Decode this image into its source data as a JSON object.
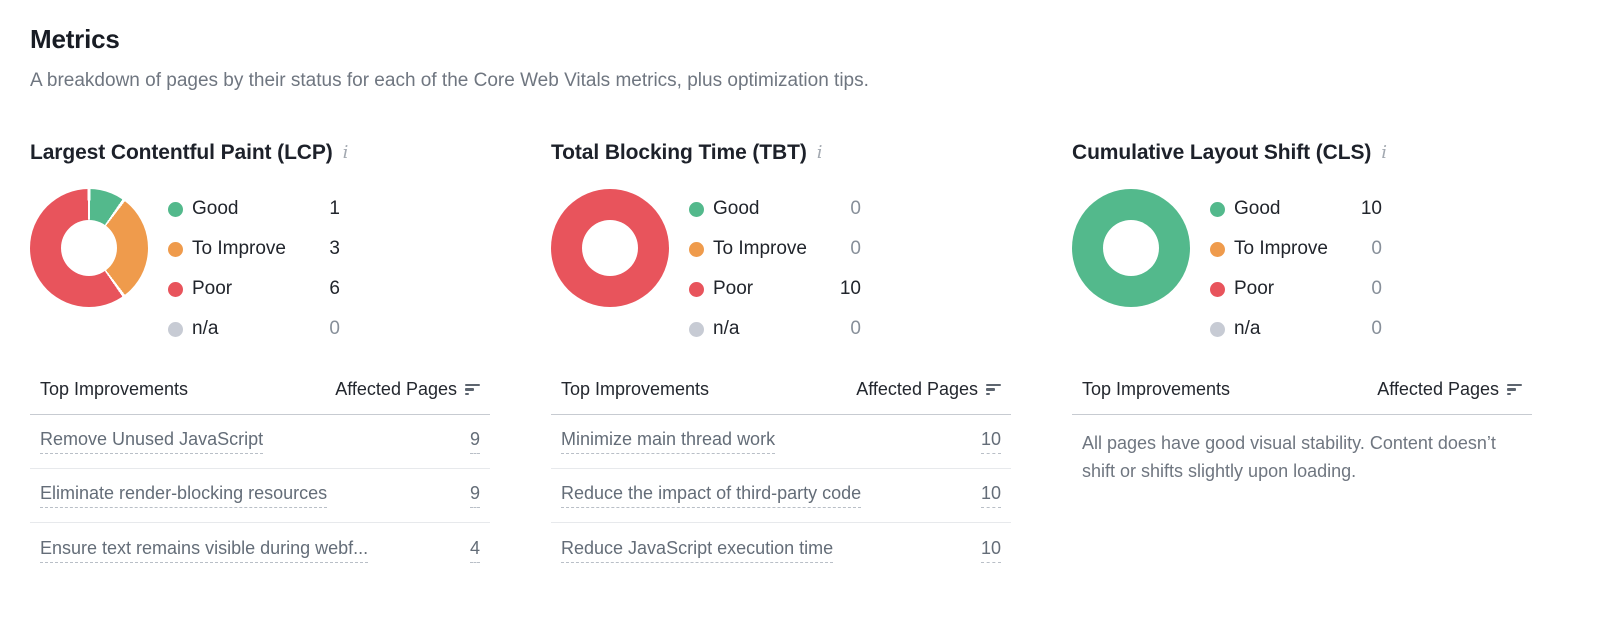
{
  "page": {
    "title": "Metrics",
    "subtitle": "A breakdown of pages by their status for each of the Core Web Vitals metrics, plus optimization tips."
  },
  "colors": {
    "good": "#53B98C",
    "toimprove": "#EF9B4C",
    "poor": "#E8545C",
    "na": "#C7CBD4"
  },
  "icons": {
    "info": "i"
  },
  "table_header": {
    "improvements": "Top Improvements",
    "affected": "Affected Pages"
  },
  "metrics": [
    {
      "title": "Largest Contentful Paint (LCP)",
      "legend": [
        {
          "label": "Good",
          "value": "1",
          "status": "good"
        },
        {
          "label": "To Improve",
          "value": "3",
          "status": "toimprove"
        },
        {
          "label": "Poor",
          "value": "6",
          "status": "poor"
        },
        {
          "label": "n/a",
          "value": "0",
          "status": "na"
        }
      ],
      "rows": [
        {
          "label": "Remove Unused JavaScript",
          "value": "9"
        },
        {
          "label": "Eliminate render-blocking resources",
          "value": "9"
        },
        {
          "label": "Ensure text remains visible during webf...",
          "value": "4"
        }
      ]
    },
    {
      "title": "Total Blocking Time (TBT)",
      "legend": [
        {
          "label": "Good",
          "value": "0",
          "status": "good"
        },
        {
          "label": "To Improve",
          "value": "0",
          "status": "toimprove"
        },
        {
          "label": "Poor",
          "value": "10",
          "status": "poor"
        },
        {
          "label": "n/a",
          "value": "0",
          "status": "na"
        }
      ],
      "rows": [
        {
          "label": "Minimize main thread work",
          "value": "10"
        },
        {
          "label": "Reduce the impact of third-party code",
          "value": "10"
        },
        {
          "label": "Reduce JavaScript execution time",
          "value": "10"
        }
      ]
    },
    {
      "title": "Cumulative Layout Shift (CLS)",
      "legend": [
        {
          "label": "Good",
          "value": "10",
          "status": "good"
        },
        {
          "label": "To Improve",
          "value": "0",
          "status": "toimprove"
        },
        {
          "label": "Poor",
          "value": "0",
          "status": "poor"
        },
        {
          "label": "n/a",
          "value": "0",
          "status": "na"
        }
      ],
      "note": "All pages have good visual stability. Content doesn’t shift or shifts slightly upon loading."
    }
  ],
  "chart_data": [
    {
      "type": "pie",
      "subtype": "donut",
      "title": "Largest Contentful Paint (LCP)",
      "categories": [
        "Good",
        "To Improve",
        "Poor",
        "n/a"
      ],
      "values": [
        1,
        3,
        6,
        0
      ],
      "colors": [
        "#53B98C",
        "#EF9B4C",
        "#E8545C",
        "#C7CBD4"
      ],
      "legend_position": "right",
      "start_angle_deg": 0,
      "direction": "clockwise"
    },
    {
      "type": "pie",
      "subtype": "donut",
      "title": "Total Blocking Time (TBT)",
      "categories": [
        "Good",
        "To Improve",
        "Poor",
        "n/a"
      ],
      "values": [
        0,
        0,
        10,
        0
      ],
      "colors": [
        "#53B98C",
        "#EF9B4C",
        "#E8545C",
        "#C7CBD4"
      ],
      "legend_position": "right"
    },
    {
      "type": "pie",
      "subtype": "donut",
      "title": "Cumulative Layout Shift (CLS)",
      "categories": [
        "Good",
        "To Improve",
        "Poor",
        "n/a"
      ],
      "values": [
        10,
        0,
        0,
        0
      ],
      "colors": [
        "#53B98C",
        "#EF9B4C",
        "#E8545C",
        "#C7CBD4"
      ],
      "legend_position": "right"
    }
  ]
}
